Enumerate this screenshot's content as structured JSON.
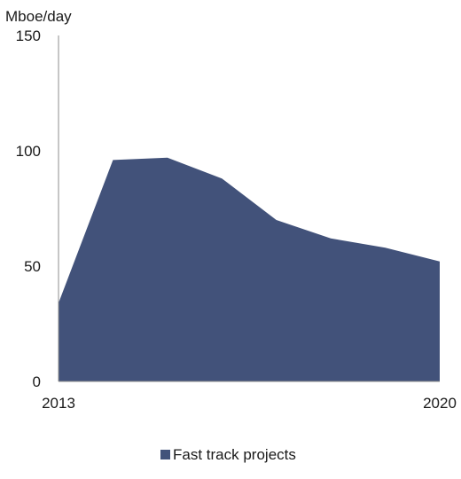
{
  "chart_data": {
    "type": "area",
    "ylabel": "Mboe/day",
    "ylim": [
      0,
      150
    ],
    "yticks": [
      0,
      50,
      100,
      150
    ],
    "xlim": [
      2013,
      2020
    ],
    "xticks": [
      2013,
      2020
    ],
    "x": [
      2013,
      2014,
      2015,
      2016,
      2017,
      2018,
      2019,
      2020
    ],
    "series": [
      {
        "name": "Fast track projects",
        "values": [
          34,
          96,
          97,
          88,
          70,
          62,
          58,
          52
        ],
        "color": "#42527A"
      }
    ],
    "legend": "bottom-center",
    "grid": false
  }
}
